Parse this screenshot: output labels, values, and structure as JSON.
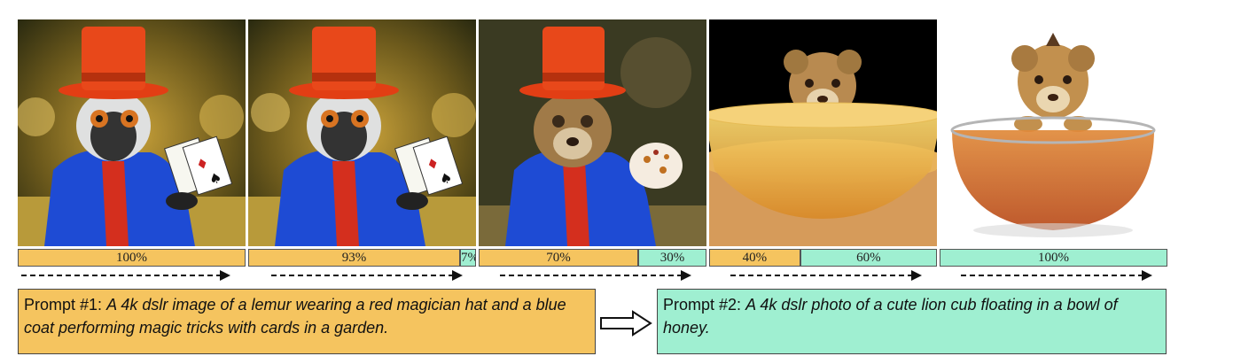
{
  "colors": {
    "prompt1": "#f5c45f",
    "prompt2": "#9fefd1",
    "arrow": "#111111"
  },
  "frames": [
    {
      "subject": "lemur magician with red top hat, blue coat and playing cards"
    },
    {
      "subject": "lemur magician with red top hat, blue coat and playing cards"
    },
    {
      "subject": "lion cub face on magician body with red hat"
    },
    {
      "subject": "lion cub in a bowl of honey"
    },
    {
      "subject": "lion cub in a glass bowl of honey"
    }
  ],
  "bars": [
    {
      "segments": [
        {
          "label": "100%",
          "value": 100,
          "prompt": 1
        }
      ]
    },
    {
      "segments": [
        {
          "label": "93%",
          "value": 93,
          "prompt": 1
        },
        {
          "label": "7%",
          "value": 7,
          "prompt": 2
        }
      ]
    },
    {
      "segments": [
        {
          "label": "70%",
          "value": 70,
          "prompt": 1
        },
        {
          "label": "30%",
          "value": 30,
          "prompt": 2
        }
      ]
    },
    {
      "segments": [
        {
          "label": "40%",
          "value": 40,
          "prompt": 1
        },
        {
          "label": "60%",
          "value": 60,
          "prompt": 2
        }
      ]
    },
    {
      "segments": [
        {
          "label": "100%",
          "value": 100,
          "prompt": 2
        }
      ]
    }
  ],
  "prompt1": {
    "label": "Prompt #1:",
    "text": "A 4k dslr image of a lemur wearing a red magician hat and a blue coat performing magic tricks with cards in a garden."
  },
  "prompt2": {
    "label": "Prompt #2:",
    "text": "A 4k dslr photo of a cute lion cub floating in a bowl of honey."
  },
  "icons": {
    "between_arrow": "hollow-right-arrow-icon",
    "timeline_arrow": "dashed-right-arrow-icon"
  }
}
